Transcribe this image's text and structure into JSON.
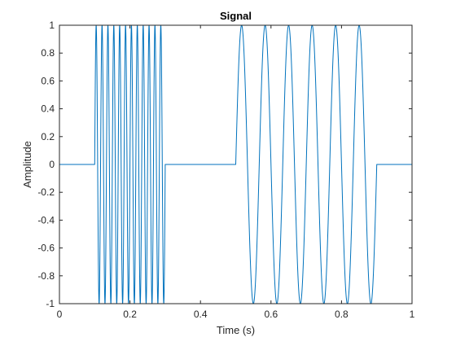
{
  "chart_data": {
    "type": "line",
    "title": "Signal",
    "xlabel": "Time (s)",
    "ylabel": "Amplitude",
    "xlim": [
      0,
      1
    ],
    "ylim": [
      -1,
      1
    ],
    "xticks": [
      "0",
      "0.2",
      "0.4",
      "0.6",
      "0.8",
      "1"
    ],
    "yticks": [
      "-1",
      "-0.8",
      "-0.6",
      "-0.4",
      "-0.2",
      "0",
      "0.2",
      "0.4",
      "0.6",
      "0.8",
      "1"
    ],
    "grid": false,
    "line_color": "#0072BD",
    "series": [
      {
        "segments": [
          {
            "x_start": 0.0,
            "x_end": 0.1,
            "kind": "constant",
            "value": 0
          },
          {
            "x_start": 0.1,
            "x_end": 0.3,
            "kind": "sine",
            "amplitude": 1,
            "frequency_hz": 60
          },
          {
            "x_start": 0.3,
            "x_end": 0.5,
            "kind": "constant",
            "value": 0
          },
          {
            "x_start": 0.5,
            "x_end": 0.9,
            "kind": "sine",
            "amplitude": 1,
            "frequency_hz": 15
          },
          {
            "x_start": 0.9,
            "x_end": 1.0,
            "kind": "constant",
            "value": 0
          }
        ]
      }
    ]
  }
}
